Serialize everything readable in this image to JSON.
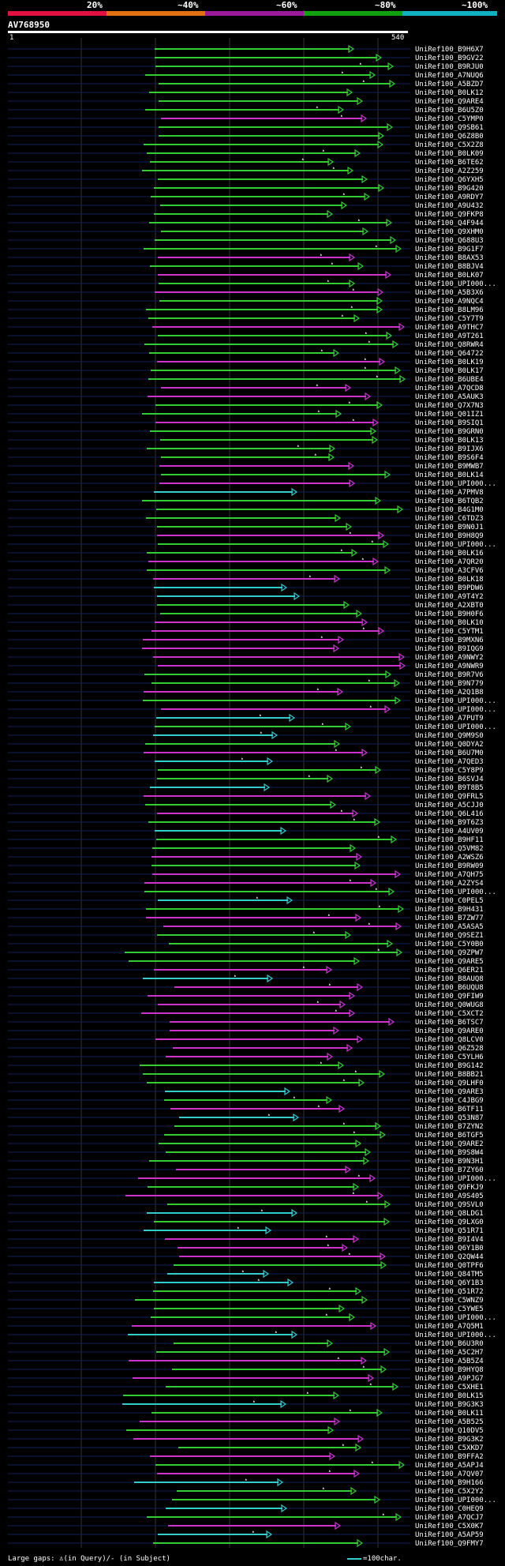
{
  "scale": {
    "labels": [
      "20%",
      "~40%",
      "~60%",
      "~80%",
      "~100%"
    ],
    "colors": [
      "#e01040",
      "#e07010",
      "#9a1a9a",
      "#10a010",
      "#10b0c0"
    ]
  },
  "query": {
    "title": "AV768950",
    "start": "1",
    "end": "540"
  },
  "colors": {
    "green": "#33cc33",
    "magenta": "#cc33cc",
    "cyan": "#33cccc"
  },
  "hits": [
    "UniRef100_B9H6X7",
    "UniRef100_B9GV22",
    "UniRef100_B9RJU0",
    "UniRef100_A7NUQ6",
    "UniRef100_A5BZD7",
    "UniRef100_B0LK12",
    "UniRef100_Q9ARE4",
    "UniRef100_B6U5Z0",
    "UniRef100_C5YMP0",
    "UniRef100_Q9SB61",
    "UniRef100_Q6Z8B0",
    "UniRef100_C5X2Z8",
    "UniRef100_B0LK09",
    "UniRef100_B6TE62",
    "UniRef100_A2Z259",
    "UniRef100_Q6YXH5",
    "UniRef100_B9G420",
    "UniRef100_A9RDY7",
    "UniRef100_A9U432",
    "UniRef100_Q9FKP8",
    "UniRef100_Q4F944",
    "UniRef100_Q9XHM0",
    "UniRef100_Q688U3",
    "UniRef100_B9G1F7",
    "UniRef100_B8AX53",
    "UniRef100_B8BJV4",
    "UniRef100_B0LK07",
    "UniRef100_UPI000...",
    "UniRef100_A5B3X6",
    "UniRef100_A9NQC4",
    "UniRef100_B8LM96",
    "UniRef100_C5Y7T9",
    "UniRef100_A9THC7",
    "UniRef100_A9T261",
    "UniRef100_Q8RWR4",
    "UniRef100_Q64722",
    "UniRef100_B0LK19",
    "UniRef100_B0LK17",
    "UniRef100_B6UBE4",
    "UniRef100_A7QCD8",
    "UniRef100_A5AUK3",
    "UniRef100_Q7X7N3",
    "UniRef100_Q01IZ1",
    "UniRef100_B9SIQ1",
    "UniRef100_B9GRN0",
    "UniRef100_B0LK13",
    "UniRef100_B9IJX6",
    "UniRef100_B9S6F4",
    "UniRef100_B9MWB7",
    "UniRef100_B0LK14",
    "UniRef100_UPI000...",
    "UniRef100_A7PMV8",
    "UniRef100_B6TQB2",
    "UniRef100_B4G1M0",
    "UniRef100_C6TDZ3",
    "UniRef100_B9N0J1",
    "UniRef100_B9H8Q9",
    "UniRef100_UPI000...",
    "UniRef100_B0LK16",
    "UniRef100_A7QR20",
    "UniRef100_A3CFV6",
    "UniRef100_B0LK18",
    "UniRef100_B9PDW6",
    "UniRef100_A9T4Y2",
    "UniRef100_A2XBT0",
    "UniRef100_B9H0F6",
    "UniRef100_B0LK10",
    "UniRef100_C5YTM1",
    "UniRef100_B9MXN6",
    "UniRef100_B9IQG9",
    "UniRef100_A9NWY2",
    "UniRef100_A9NWR9",
    "UniRef100_B9R7V6",
    "UniRef100_B9N779",
    "UniRef100_A2Q1B8",
    "UniRef100_UPI000...",
    "UniRef100_UPI000...",
    "UniRef100_A7PUT9",
    "UniRef100_UPI000...",
    "UniRef100_Q9M9S0",
    "UniRef100_Q0DYA2",
    "UniRef100_B6U7M0",
    "UniRef100_A7QED3",
    "UniRef100_C5Y8P9",
    "UniRef100_B6SVJ4",
    "UniRef100_B9T8B5",
    "UniRef100_Q9FRL5",
    "UniRef100_A5CJJ0",
    "UniRef100_Q6L416",
    "UniRef100_B9T6Z3",
    "UniRef100_A4UV09",
    "UniRef100_B9HF11",
    "UniRef100_Q5VM82",
    "UniRef100_A2WSZ6",
    "UniRef100_B9RW09",
    "UniRef100_A7QH75",
    "UniRef100_A2ZYS4",
    "UniRef100_UPI000...",
    "UniRef100_C0PEL5",
    "UniRef100_B9H431",
    "UniRef100_B7ZW77",
    "UniRef100_A5ASA5",
    "UniRef100_Q9SEZ1",
    "UniRef100_C5Y0B0",
    "UniRef100_Q9ZPW7",
    "UniRef100_Q9ARE5",
    "UniRef100_Q6ER21",
    "UniRef100_B8AUQ8",
    "UniRef100_B6UQU8",
    "UniRef100_Q9FIW9",
    "UniRef100_Q0WUG8",
    "UniRef100_C5XCT2",
    "UniRef100_B6TSC7",
    "UniRef100_Q9ARE0",
    "UniRef100_Q8LCV0",
    "UniRef100_Q6Z528",
    "UniRef100_C5YLH6",
    "UniRef100_B9G142",
    "UniRef100_B8BB21",
    "UniRef100_Q9LHF0",
    "UniRef100_Q9ARE3",
    "UniRef100_C4JBG9",
    "UniRef100_B6TF11",
    "UniRef100_Q53N87",
    "UniRef100_B7ZYN2",
    "UniRef100_B6TGF5",
    "UniRef100_Q9ARE2",
    "UniRef100_B9S8W4",
    "UniRef100_B9N3H1",
    "UniRef100_B7ZY60",
    "UniRef100_UPI000...",
    "UniRef100_Q9FKJ9",
    "UniRef100_A9S405",
    "UniRef100_Q9SVL0",
    "UniRef100_Q8LDG1",
    "UniRef100_Q9LXG0",
    "UniRef100_Q51R71",
    "UniRef100_B9I4V4",
    "UniRef100_Q6Y1B0",
    "UniRef100_Q2QW44",
    "UniRef100_Q0TPF6",
    "UniRef100_Q84TM5",
    "UniRef100_Q6Y1B3",
    "UniRef100_Q51R72",
    "UniRef100_C5WNZ9",
    "UniRef100_C5YWE5",
    "UniRef100_UPI000...",
    "UniRef100_A7Q5M1",
    "UniRef100_UPI000...",
    "UniRef100_B6U3R0",
    "UniRef100_A5C2H7",
    "UniRef100_A5B5Z4",
    "UniRef100_B9HYQ8",
    "UniRef100_A9PJG7",
    "UniRef100_C5XHE1",
    "UniRef100_B0LK15",
    "UniRef100_B9G3K3",
    "UniRef100_B0LK11",
    "UniRef100_A5B525",
    "UniRef100_Q10DV5",
    "UniRef100_B9G3K2",
    "UniRef100_C5XKD7",
    "UniRef100_B9FFA2",
    "UniRef100_A5APJ4",
    "UniRef100_A7QV07",
    "UniRef100_B9H166",
    "UniRef100_C5X2Y2",
    "UniRef100_UPI000...",
    "UniRef100_C0HEQ9",
    "UniRef100_A7QCJ7",
    "UniRef100_C5X0K7",
    "UniRef100_A5AP59",
    "UniRef100_Q9FMY7"
  ],
  "legend": {
    "text": "Large gaps: ♙(in Query)/- (in Subject)",
    "scale_text": "=100char."
  }
}
